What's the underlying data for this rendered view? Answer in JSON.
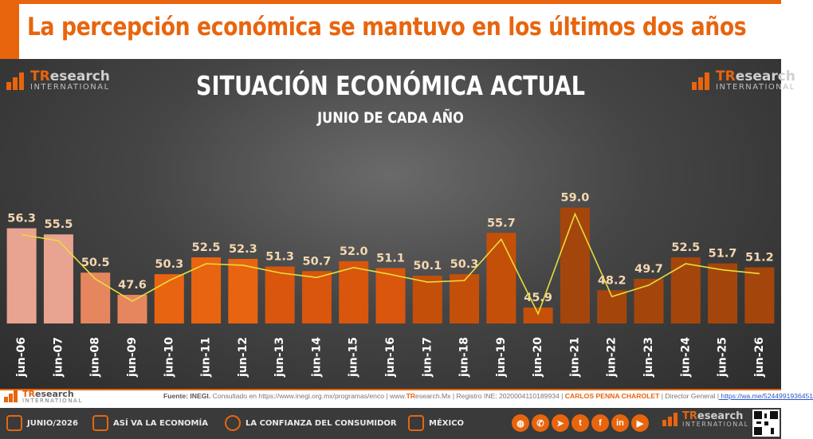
{
  "headline": "La percepción económica se mantuvo en los últimos dos años",
  "brand": {
    "name_tr": "TR",
    "name_rest": "esearch",
    "sub": "INTERNATIONAL"
  },
  "chart_data": {
    "type": "bar",
    "title": "SITUACIÓN ECONÓMICA ACTUAL",
    "subtitle": "JUNIO DE CADA AÑO",
    "categories": [
      "jun-06",
      "jun-07",
      "jun-08",
      "jun-09",
      "jun-10",
      "jun-11",
      "jun-12",
      "jun-13",
      "jun-14",
      "jun-15",
      "jun-16",
      "jun-17",
      "jun-18",
      "jun-19",
      "jun-20",
      "jun-21",
      "jun-22",
      "jun-23",
      "jun-24",
      "jun-25",
      "jun-26"
    ],
    "series": [
      {
        "values": [
          56.3,
          55.5,
          50.5,
          47.6,
          50.3,
          52.5,
          52.3,
          51.3,
          50.7,
          52.0,
          51.1,
          50.1,
          50.3,
          55.7,
          45.9,
          59.0,
          48.2,
          49.7,
          52.5,
          51.7,
          51.2
        ]
      }
    ],
    "trend_line": true,
    "data_labels": true,
    "colors": [
      "#e9a391",
      "#e9a391",
      "#e6865f",
      "#e6865f",
      "#e96410",
      "#e96410",
      "#e96410",
      "#d9560c",
      "#d9560c",
      "#d9560c",
      "#d9560c",
      "#c44f08",
      "#c44f08",
      "#c44f08",
      "#c44f08",
      "#a4460c",
      "#a4460c",
      "#a4460c",
      "#a4460c",
      "#a4460c",
      "#a4460c"
    ],
    "trend_color": "#e8dd3a",
    "label_color": "#f4d7b0"
  },
  "footer": {
    "source_label": "Fuente: INEGI.",
    "source_rest": " Consultado en https://www.inegi.org.mx/programas/enco | www.",
    "site_tr": "TR",
    "site_rest": "esearch.Mx | Registro INE: 2020004110189934 |",
    "author": " CARLOS PENNA CHAROLET",
    "role": " | Director General |",
    "link": " https://wa.me/5244991936451"
  },
  "bottom_bar": {
    "date": "JUNIO/2026",
    "topic": "ASÍ VA LA ECONOMÍA",
    "survey": "LA CONFIANZA DEL CONSUMIDOR",
    "country": "MÉXICO"
  },
  "social_icons": [
    "globe-icon",
    "whatsapp-icon",
    "telegram-icon",
    "twitter-icon",
    "facebook-icon",
    "linkedin-icon",
    "youtube-icon"
  ]
}
